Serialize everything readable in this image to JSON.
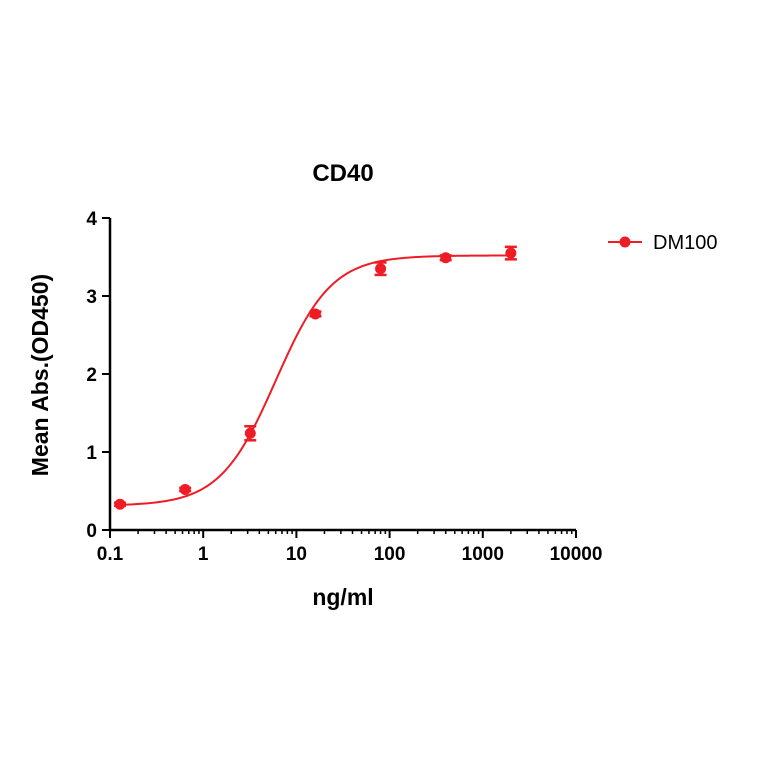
{
  "chart_data": {
    "type": "scatter",
    "title": "CD40",
    "xlabel": "ng/ml",
    "ylabel": "Mean Abs.(OD450)",
    "x_scale": "log",
    "xlim": [
      0.1,
      10000
    ],
    "ylim": [
      0,
      4
    ],
    "x_ticks": [
      {
        "value": 0.1,
        "label": "0.1"
      },
      {
        "value": 1,
        "label": "1"
      },
      {
        "value": 10,
        "label": "10"
      },
      {
        "value": 100,
        "label": "100"
      },
      {
        "value": 1000,
        "label": "1000"
      },
      {
        "value": 10000,
        "label": "10000"
      }
    ],
    "y_ticks": [
      {
        "value": 0,
        "label": "0"
      },
      {
        "value": 1,
        "label": "1"
      },
      {
        "value": 2,
        "label": "2"
      },
      {
        "value": 3,
        "label": "3"
      },
      {
        "value": 4,
        "label": "4"
      }
    ],
    "legend_position": "top-right",
    "series": [
      {
        "name": "DM100",
        "color": "#ee1c25",
        "points": [
          {
            "x": 0.128,
            "y": 0.33,
            "err": 0.02
          },
          {
            "x": 0.64,
            "y": 0.52,
            "err": 0.02
          },
          {
            "x": 3.2,
            "y": 1.24,
            "err": 0.09
          },
          {
            "x": 16,
            "y": 2.77,
            "err": 0.03
          },
          {
            "x": 80,
            "y": 3.35,
            "err": 0.08
          },
          {
            "x": 400,
            "y": 3.49,
            "err": 0.03
          },
          {
            "x": 2000,
            "y": 3.55,
            "err": 0.08
          }
        ],
        "fit": {
          "model": "4PL",
          "bottom": 0.31,
          "top": 3.52,
          "ec50": 6.0,
          "hill": 1.45
        }
      }
    ]
  }
}
